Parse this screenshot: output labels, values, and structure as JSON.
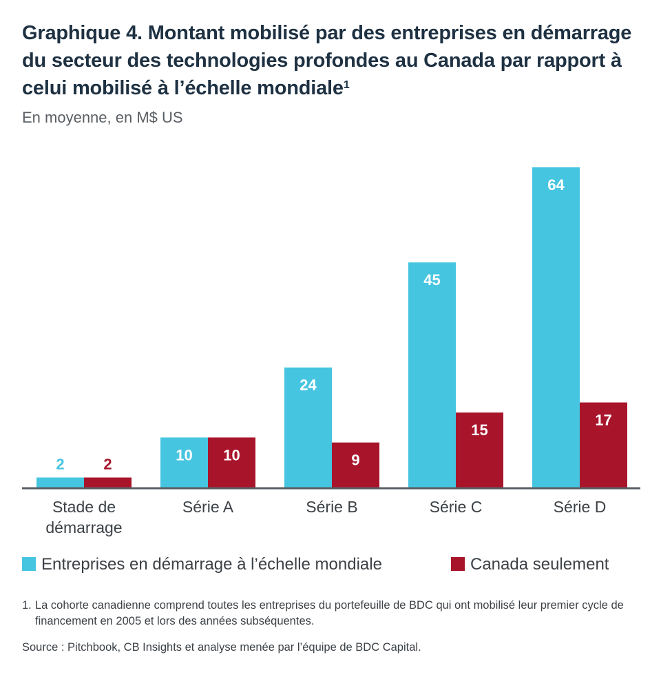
{
  "title": {
    "text": "Graphique 4. Montant mobilisé par des entreprises en démarrage du secteur des technologies profondes au Canada par rapport à celui mobilisé à l’échelle mondiale",
    "footnote_marker": "1"
  },
  "subtitle": "En moyenne, en M$ US",
  "chart_data": {
    "type": "bar",
    "title": "Graphique 4. Montant mobilisé par des entreprises en démarrage du secteur des technologies profondes au Canada par rapport à celui mobilisé à l’échelle mondiale",
    "subtitle": "En moyenne, en M$ US",
    "categories": [
      "Stade de démarrage",
      "Série A",
      "Série B",
      "Série C",
      "Série D"
    ],
    "category_lines": [
      [
        "Stade de",
        "démarrage"
      ],
      [
        "Série A"
      ],
      [
        "Série B"
      ],
      [
        "Série C"
      ],
      [
        "Série D"
      ]
    ],
    "series": [
      {
        "name": "Entreprises en démarrage à l’échelle mondiale",
        "color": "#46c5e1",
        "values": [
          2,
          10,
          24,
          45,
          64
        ]
      },
      {
        "name": "Canada seulement",
        "color": "#a8152b",
        "values": [
          2,
          10,
          9,
          15,
          17
        ]
      }
    ],
    "xlabel": "",
    "ylabel": "",
    "ylim": [
      0,
      64
    ],
    "grid": false,
    "legend": "bottom"
  },
  "footnote": {
    "number": "1.",
    "text": "La cohorte canadienne comprend toutes les entreprises du portefeuille de BDC qui ont mobilisé leur premier cycle de financement en 2005 et lors des années subséquentes."
  },
  "source": "Source : Pitchbook, CB Insights et analyse menée par l’équipe de BDC Capital."
}
